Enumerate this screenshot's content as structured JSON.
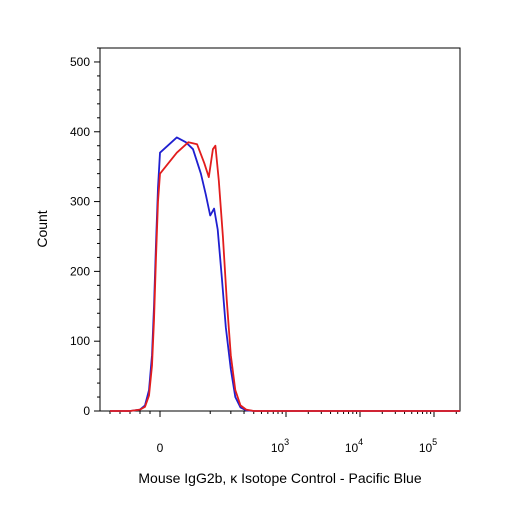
{
  "chart_data": {
    "type": "line",
    "title": "",
    "xlabel": "Mouse IgG2b, κ Isotope Control - Pacific Blue",
    "ylabel": "Count",
    "ylim": [
      0,
      520
    ],
    "xscale": "biexponential",
    "y_ticks": [
      {
        "value": 0,
        "label": "0"
      },
      {
        "value": 100,
        "label": "100"
      },
      {
        "value": 200,
        "label": "200"
      },
      {
        "value": 300,
        "label": "300"
      },
      {
        "value": 400,
        "label": "400"
      },
      {
        "value": 500,
        "label": "500"
      }
    ],
    "x_ticks": [
      {
        "value": 0,
        "base": "0",
        "exp": ""
      },
      {
        "value": 1000,
        "base": "10",
        "exp": "3"
      },
      {
        "value": 10000,
        "base": "10",
        "exp": "4"
      },
      {
        "value": 100000,
        "base": "10",
        "exp": "5"
      }
    ],
    "series": [
      {
        "color": "#1f1fd0",
        "points": [
          [
            -500,
            0
          ],
          [
            -300,
            0
          ],
          [
            -200,
            2
          ],
          [
            -150,
            8
          ],
          [
            -110,
            30
          ],
          [
            -80,
            80
          ],
          [
            -60,
            150
          ],
          [
            -40,
            240
          ],
          [
            -20,
            320
          ],
          [
            0,
            370
          ],
          [
            20,
            392
          ],
          [
            35,
            385
          ],
          [
            50,
            375
          ],
          [
            70,
            340
          ],
          [
            85,
            310
          ],
          [
            100,
            280
          ],
          [
            115,
            290
          ],
          [
            130,
            260
          ],
          [
            150,
            190
          ],
          [
            170,
            120
          ],
          [
            200,
            60
          ],
          [
            230,
            20
          ],
          [
            270,
            5
          ],
          [
            320,
            1
          ],
          [
            400,
            0
          ],
          [
            1000,
            0
          ],
          [
            10000,
            0
          ],
          [
            100000,
            0
          ],
          [
            262000,
            0
          ]
        ]
      },
      {
        "color": "#e21d1d",
        "points": [
          [
            -500,
            0
          ],
          [
            -300,
            0
          ],
          [
            -200,
            2
          ],
          [
            -150,
            6
          ],
          [
            -110,
            22
          ],
          [
            -80,
            65
          ],
          [
            -60,
            130
          ],
          [
            -40,
            220
          ],
          [
            -20,
            300
          ],
          [
            0,
            340
          ],
          [
            20,
            370
          ],
          [
            40,
            385
          ],
          [
            60,
            382
          ],
          [
            80,
            355
          ],
          [
            95,
            335
          ],
          [
            110,
            375
          ],
          [
            120,
            380
          ],
          [
            135,
            330
          ],
          [
            155,
            250
          ],
          [
            175,
            160
          ],
          [
            200,
            80
          ],
          [
            230,
            30
          ],
          [
            270,
            8
          ],
          [
            320,
            2
          ],
          [
            400,
            0
          ],
          [
            1000,
            0
          ],
          [
            10000,
            0
          ],
          [
            100000,
            0
          ],
          [
            262000,
            0
          ]
        ]
      }
    ],
    "grid": false,
    "legend": "none"
  }
}
